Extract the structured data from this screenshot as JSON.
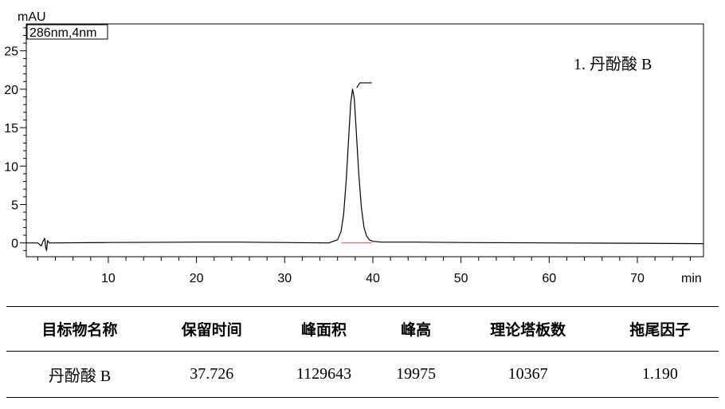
{
  "chart_data": {
    "type": "line",
    "ylabel": "mAU",
    "xlabel": "min",
    "channel_label": "286nm,4nm",
    "xlim": [
      0.7,
      77.5
    ],
    "ylim": [
      -1.8,
      28.5
    ],
    "x_ticks": [
      10,
      20,
      30,
      40,
      50,
      60,
      70
    ],
    "y_ticks": [
      0,
      5,
      10,
      15,
      20,
      25
    ],
    "peaks": [
      {
        "label": "1. 丹酚酸 B",
        "retention_time": 37.726,
        "height_mAU": 20.0
      }
    ],
    "series": [
      {
        "x": [
          0.7,
          2.0,
          2.4,
          2.6,
          2.8,
          2.9,
          3.0,
          3.1,
          3.3,
          3.5,
          4.0,
          10,
          20,
          25,
          30,
          35,
          36.0,
          36.4,
          36.7,
          37.0,
          37.3,
          37.5,
          37.7,
          37.9,
          38.1,
          38.4,
          38.7,
          39.0,
          39.3,
          39.6,
          40.0,
          41,
          45,
          50,
          60,
          70,
          77.5
        ],
        "y": [
          0.0,
          0.0,
          -0.4,
          0.2,
          0.6,
          -0.6,
          -1.0,
          0.3,
          0.0,
          0.0,
          0.0,
          0.05,
          0.1,
          0.1,
          0.05,
          0.0,
          0.4,
          1.5,
          3.8,
          8.5,
          14.5,
          18.3,
          20.0,
          18.8,
          15.0,
          9.0,
          4.6,
          2.0,
          0.9,
          0.4,
          0.2,
          0.1,
          0.1,
          0.05,
          0.0,
          -0.05,
          -0.1
        ]
      }
    ]
  },
  "table": {
    "headers": [
      "目标物名称",
      "保留时间",
      "峰面积",
      "峰高",
      "理论塔板数",
      "拖尾因子"
    ],
    "rows": [
      [
        "丹酚酸 B",
        "37.726",
        "1129643",
        "19975",
        "10367",
        "1.190"
      ]
    ]
  }
}
